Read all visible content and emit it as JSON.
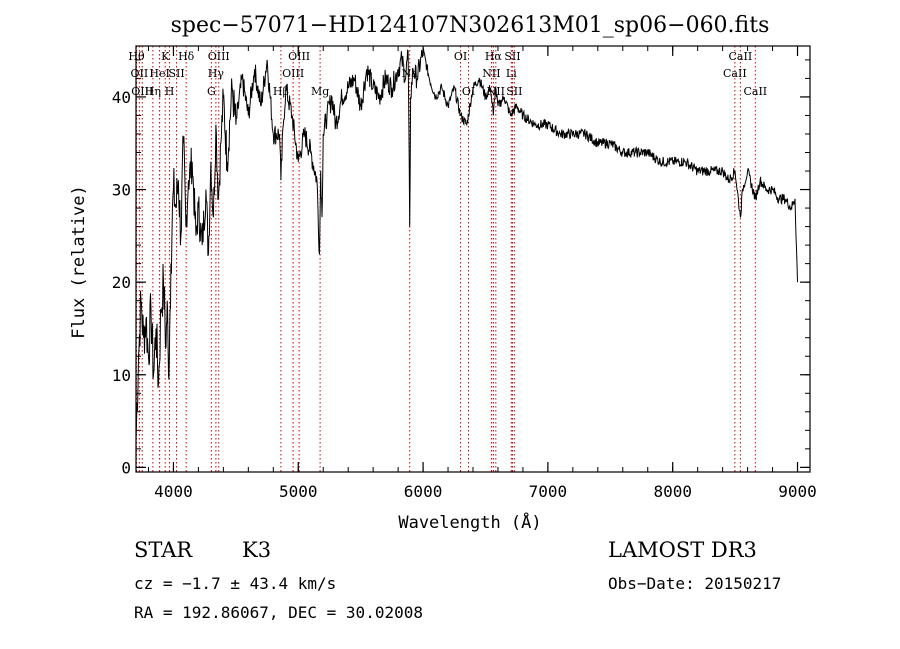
{
  "chart_data": {
    "type": "line",
    "title": "spec−57071−HD124107N302613M01_sp06−060.fits",
    "xlabel": "Wavelength (Å)",
    "ylabel": "Flux (relative)",
    "xlim": [
      3700,
      9100
    ],
    "ylim": [
      -0.5,
      45.5
    ],
    "xticks": [
      4000,
      5000,
      6000,
      7000,
      8000,
      9000
    ],
    "yticks": [
      0,
      10,
      20,
      30,
      40
    ],
    "x_minor_step": 200,
    "y_minor_step": 2,
    "series": [
      {
        "name": "spectrum",
        "x": [
          3700,
          3720,
          3740,
          3760,
          3780,
          3800,
          3820,
          3840,
          3860,
          3880,
          3900,
          3920,
          3940,
          3950,
          3960,
          3970,
          3980,
          4000,
          4020,
          4040,
          4060,
          4080,
          4100,
          4120,
          4150,
          4180,
          4200,
          4230,
          4260,
          4280,
          4300,
          4320,
          4340,
          4360,
          4380,
          4400,
          4430,
          4470,
          4500,
          4550,
          4600,
          4650,
          4700,
          4750,
          4800,
          4850,
          4861,
          4880,
          4900,
          4950,
          5000,
          5050,
          5100,
          5150,
          5170,
          5180,
          5190,
          5200,
          5230,
          5270,
          5300,
          5350,
          5400,
          5450,
          5500,
          5550,
          5600,
          5650,
          5700,
          5750,
          5800,
          5830,
          5860,
          5880,
          5893,
          5900,
          5920,
          5950,
          6000,
          6050,
          6100,
          6150,
          6200,
          6250,
          6300,
          6350,
          6400,
          6450,
          6500,
          6540,
          6563,
          6580,
          6600,
          6650,
          6700,
          6750,
          6800,
          6900,
          7000,
          7100,
          7200,
          7300,
          7400,
          7500,
          7600,
          7700,
          7800,
          7900,
          8000,
          8100,
          8200,
          8300,
          8400,
          8450,
          8500,
          8542,
          8560,
          8600,
          8662,
          8700,
          8750,
          8800,
          8850,
          8900,
          8950,
          8980,
          9000
        ],
        "y": [
          3,
          12,
          18,
          14,
          16,
          12,
          17,
          10,
          15,
          9,
          17,
          20,
          13,
          18,
          10,
          15,
          22,
          30,
          28,
          31,
          25,
          35,
          26,
          31,
          33,
          25,
          28,
          24,
          30,
          23,
          33,
          27,
          37,
          29,
          35,
          40,
          33,
          41,
          37,
          42,
          38,
          43,
          39,
          44,
          36,
          36,
          31,
          37,
          41,
          38,
          33,
          36,
          34,
          31,
          23,
          32,
          27,
          36,
          38,
          40,
          37,
          40,
          41,
          42,
          39,
          43,
          41,
          40,
          42,
          41,
          43,
          44,
          42,
          45,
          26,
          40,
          43,
          42,
          45,
          42,
          40,
          41,
          39,
          41,
          38,
          37,
          41,
          42,
          40,
          41,
          38,
          41,
          39,
          40,
          38,
          39,
          38,
          37,
          37,
          36,
          36,
          36,
          35,
          35,
          34,
          34,
          34,
          33,
          33,
          33,
          32,
          32,
          32,
          31,
          32,
          27,
          30,
          32,
          29,
          31,
          30,
          30,
          29,
          29,
          28,
          29,
          20
        ]
      }
    ],
    "line_labels": [
      {
        "x": 3704,
        "text": "Hθ",
        "row": 0
      },
      {
        "x": 3727,
        "text": "OII",
        "row": 1
      },
      {
        "x": 3750,
        "text": "OIII",
        "row": 2
      },
      {
        "x": 3835,
        "text": "Hη",
        "row": 2
      },
      {
        "x": 3889,
        "text": "HeI",
        "row": 1
      },
      {
        "x": 3934,
        "text": "K",
        "row": 0
      },
      {
        "x": 3969,
        "text": "H",
        "row": 2
      },
      {
        "x": 4025,
        "text": "SII",
        "row": 1
      },
      {
        "x": 4102,
        "text": "Hδ",
        "row": 0
      },
      {
        "x": 4304,
        "text": "G",
        "row": 2
      },
      {
        "x": 4340,
        "text": "Hγ",
        "row": 1
      },
      {
        "x": 4363,
        "text": "OIII",
        "row": 0
      },
      {
        "x": 4861,
        "text": "Hβ",
        "row": 2
      },
      {
        "x": 4959,
        "text": "OIII",
        "row": 1
      },
      {
        "x": 5007,
        "text": "OIII",
        "row": 0
      },
      {
        "x": 5175,
        "text": "Mg",
        "row": 2
      },
      {
        "x": 5893,
        "text": "Na",
        "row": 1
      },
      {
        "x": 6300,
        "text": "OI",
        "row": 0
      },
      {
        "x": 6364,
        "text": "OI",
        "row": 2
      },
      {
        "x": 6548,
        "text": "NII",
        "row": 1
      },
      {
        "x": 6563,
        "text": "Hα",
        "row": 0
      },
      {
        "x": 6583,
        "text": "NII",
        "row": 2
      },
      {
        "x": 6707,
        "text": "Li",
        "row": 1
      },
      {
        "x": 6716,
        "text": "SII",
        "row": 0
      },
      {
        "x": 6731,
        "text": "SII",
        "row": 2
      },
      {
        "x": 8498,
        "text": "CaII",
        "row": 1
      },
      {
        "x": 8542,
        "text": "CaII",
        "row": 0
      },
      {
        "x": 8662,
        "text": "CaII",
        "row": 2
      }
    ],
    "line_color": "#cc0000",
    "grid": false
  },
  "info": {
    "object_class": "STAR",
    "subclass": "K3",
    "survey": "LAMOST DR3",
    "redshift": "cz = −1.7 ± 43.4 km/s",
    "obs_date": "Obs−Date: 20150217",
    "coords": "RA = 192.86067, DEC =  30.02008"
  }
}
